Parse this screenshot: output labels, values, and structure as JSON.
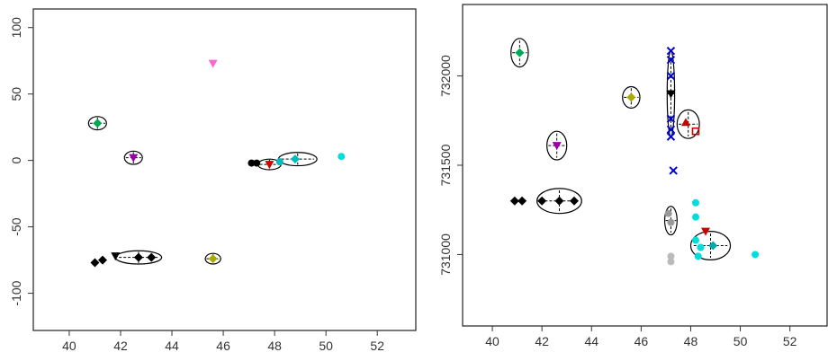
{
  "chart_data": [
    {
      "type": "scatter",
      "title": "",
      "xlabel": "",
      "ylabel": "",
      "xlim": [
        38.6,
        53.5
      ],
      "ylim": [
        -128,
        114
      ],
      "xticks": [
        "40",
        "42",
        "44",
        "46",
        "48",
        "50",
        "52"
      ],
      "xtick_values": [
        40,
        42,
        44,
        46,
        48,
        50,
        52
      ],
      "yticks": [
        "-100",
        "-50",
        "0",
        "50",
        "100"
      ],
      "ytick_values": [
        -100,
        -50,
        0,
        50,
        100
      ],
      "grid": false,
      "legend": "none",
      "colors": [
        "#000000",
        "#9900aa",
        "#ff66cc",
        "#cc0000",
        "#00bbbb",
        "#aaaa00",
        "#00aa55"
      ],
      "points": [
        {
          "x": 45.6,
          "y": 73,
          "color": "#ff66cc",
          "shape": "triangle-down"
        },
        {
          "x": 41.1,
          "y": 28,
          "color": "#00aa55",
          "shape": "diamond"
        },
        {
          "x": 42.5,
          "y": 2,
          "color": "#9900aa",
          "shape": "triangle-down"
        },
        {
          "x": 47.1,
          "y": -2,
          "color": "#000000",
          "shape": "circle"
        },
        {
          "x": 47.3,
          "y": -2,
          "color": "#000000",
          "shape": "circle"
        },
        {
          "x": 47.8,
          "y": -3,
          "color": "#cc0000",
          "shape": "triangle-down"
        },
        {
          "x": 48.2,
          "y": -1,
          "color": "#00bbbb",
          "shape": "circle"
        },
        {
          "x": 48.8,
          "y": 1,
          "color": "#00bbbb",
          "shape": "diamond"
        },
        {
          "x": 50.6,
          "y": 3,
          "color": "#00dddd",
          "shape": "circle"
        },
        {
          "x": 41.0,
          "y": -77,
          "color": "#000000",
          "shape": "diamond"
        },
        {
          "x": 41.3,
          "y": -75,
          "color": "#000000",
          "shape": "diamond"
        },
        {
          "x": 41.8,
          "y": -72,
          "color": "#000000",
          "shape": "triangle-down"
        },
        {
          "x": 42.7,
          "y": -73,
          "color": "#000000",
          "shape": "diamond"
        },
        {
          "x": 43.2,
          "y": -73,
          "color": "#000000",
          "shape": "diamond"
        },
        {
          "x": 45.6,
          "y": -74,
          "color": "#aaaa00",
          "shape": "diamond"
        }
      ],
      "ellipses": [
        {
          "cx": 41.1,
          "cy": 28,
          "rx": 0.35,
          "ry": 5,
          "color": "#000000"
        },
        {
          "cx": 42.5,
          "cy": 2,
          "rx": 0.35,
          "ry": 5,
          "color": "#000000"
        },
        {
          "cx": 47.8,
          "cy": -3,
          "rx": 0.45,
          "ry": 4,
          "color": "#000000"
        },
        {
          "cx": 48.9,
          "cy": 1,
          "rx": 0.75,
          "ry": 5,
          "color": "#000000"
        },
        {
          "cx": 42.7,
          "cy": -73,
          "rx": 0.9,
          "ry": 5,
          "color": "#000000"
        },
        {
          "cx": 45.6,
          "cy": -74,
          "rx": 0.3,
          "ry": 4,
          "color": "#000000"
        }
      ]
    },
    {
      "type": "scatter",
      "title": "",
      "xlabel": "",
      "ylabel": "",
      "xlim": [
        38.8,
        53.5
      ],
      "ylim": [
        730600,
        732400
      ],
      "xticks": [
        "40",
        "42",
        "44",
        "46",
        "48",
        "50",
        "52"
      ],
      "xtick_values": [
        40,
        42,
        44,
        46,
        48,
        50,
        52
      ],
      "yticks": [
        "731000",
        "731500",
        "732000"
      ],
      "ytick_values": [
        731000,
        731500,
        732000
      ],
      "grid": false,
      "legend": "none",
      "points": [
        {
          "x": 41.1,
          "y": 732130,
          "color": "#00aa55",
          "shape": "diamond"
        },
        {
          "x": 45.6,
          "y": 731880,
          "color": "#aaaa00",
          "shape": "diamond"
        },
        {
          "x": 47.2,
          "y": 732140,
          "color": "#0000cc",
          "shape": "x"
        },
        {
          "x": 47.2,
          "y": 732090,
          "color": "#0000cc",
          "shape": "x"
        },
        {
          "x": 47.2,
          "y": 732000,
          "color": "#0000cc",
          "shape": "x"
        },
        {
          "x": 47.2,
          "y": 731900,
          "color": "#000000",
          "shape": "triangle-down"
        },
        {
          "x": 47.2,
          "y": 731760,
          "color": "#0000cc",
          "shape": "x"
        },
        {
          "x": 47.2,
          "y": 731700,
          "color": "#0000cc",
          "shape": "x"
        },
        {
          "x": 47.2,
          "y": 731660,
          "color": "#0000cc",
          "shape": "x"
        },
        {
          "x": 47.3,
          "y": 731470,
          "color": "#0000cc",
          "shape": "x"
        },
        {
          "x": 47.8,
          "y": 731740,
          "color": "#cc0000",
          "shape": "triangle-up"
        },
        {
          "x": 48.2,
          "y": 731690,
          "color": "#cc0000",
          "shape": "square"
        },
        {
          "x": 42.6,
          "y": 731610,
          "color": "#9900aa",
          "shape": "triangle-down"
        },
        {
          "x": 40.9,
          "y": 731300,
          "color": "#000000",
          "shape": "diamond"
        },
        {
          "x": 41.2,
          "y": 731300,
          "color": "#000000",
          "shape": "diamond"
        },
        {
          "x": 42.7,
          "y": 731300,
          "color": "#000000",
          "shape": "diamond"
        },
        {
          "x": 43.3,
          "y": 731300,
          "color": "#000000",
          "shape": "diamond"
        },
        {
          "x": 42.0,
          "y": 731300,
          "color": "#000000",
          "shape": "diamond"
        },
        {
          "x": 47.1,
          "y": 731230,
          "color": "#999999",
          "shape": "circle"
        },
        {
          "x": 47.2,
          "y": 731180,
          "color": "#999999",
          "shape": "circle"
        },
        {
          "x": 47.2,
          "y": 730990,
          "color": "#bbbbbb",
          "shape": "circle"
        },
        {
          "x": 47.2,
          "y": 730960,
          "color": "#bbbbbb",
          "shape": "circle"
        },
        {
          "x": 48.2,
          "y": 731290,
          "color": "#00dddd",
          "shape": "circle"
        },
        {
          "x": 48.2,
          "y": 731210,
          "color": "#00dddd",
          "shape": "circle"
        },
        {
          "x": 48.2,
          "y": 731080,
          "color": "#00dddd",
          "shape": "circle"
        },
        {
          "x": 48.4,
          "y": 731040,
          "color": "#00dddd",
          "shape": "circle"
        },
        {
          "x": 48.3,
          "y": 730990,
          "color": "#00dddd",
          "shape": "circle"
        },
        {
          "x": 48.9,
          "y": 731050,
          "color": "#00aaaa",
          "shape": "diamond"
        },
        {
          "x": 48.6,
          "y": 731130,
          "color": "#cc0000",
          "shape": "triangle-down"
        },
        {
          "x": 50.6,
          "y": 731000,
          "color": "#00dddd",
          "shape": "circle"
        }
      ],
      "ellipses": [
        {
          "cx": 41.1,
          "cy": 732130,
          "rx": 0.35,
          "ry": 80,
          "color": "#000000"
        },
        {
          "cx": 45.6,
          "cy": 731880,
          "rx": 0.35,
          "ry": 60,
          "color": "#000000"
        },
        {
          "cx": 47.2,
          "cy": 731900,
          "rx": 0.15,
          "ry": 240,
          "color": "#000000"
        },
        {
          "cx": 47.9,
          "cy": 731730,
          "rx": 0.45,
          "ry": 80,
          "color": "#000000"
        },
        {
          "cx": 42.6,
          "cy": 731610,
          "rx": 0.4,
          "ry": 80,
          "color": "#000000"
        },
        {
          "cx": 42.7,
          "cy": 731300,
          "rx": 0.9,
          "ry": 70,
          "color": "#000000"
        },
        {
          "cx": 47.2,
          "cy": 731190,
          "rx": 0.25,
          "ry": 80,
          "color": "#000000"
        },
        {
          "cx": 48.8,
          "cy": 731050,
          "rx": 0.8,
          "ry": 80,
          "color": "#000000"
        }
      ]
    }
  ]
}
